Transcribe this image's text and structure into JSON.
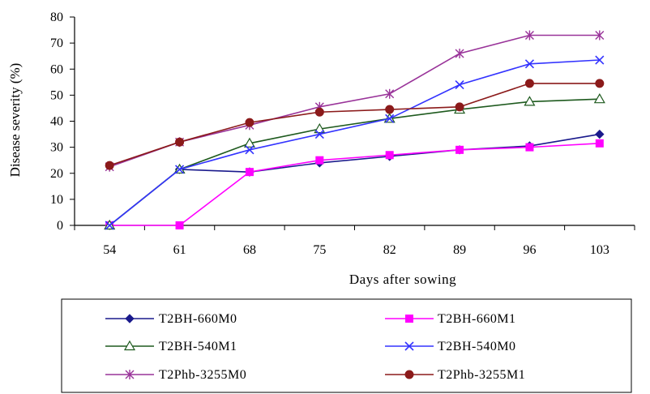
{
  "chart_data": {
    "type": "line",
    "title": "",
    "xlabel": "Days after sowing",
    "ylabel": "Disease severity (%)",
    "categories": [
      "54",
      "61",
      "68",
      "75",
      "82",
      "89",
      "96",
      "103"
    ],
    "ylim": [
      0,
      80
    ],
    "yticks": [
      0,
      10,
      20,
      30,
      40,
      50,
      60,
      70,
      80
    ],
    "grid": false,
    "legend_position": "bottom",
    "series": [
      {
        "name": "T2BH-660M0",
        "color": "#1a1a8c",
        "marker": "diamond",
        "values": [
          0,
          21.5,
          20.5,
          24,
          26.5,
          29,
          30.5,
          35
        ]
      },
      {
        "name": "T2BH-660M1",
        "color": "#ff00ff",
        "marker": "square",
        "values": [
          0,
          0,
          20.5,
          25,
          27,
          29,
          30,
          31.5
        ]
      },
      {
        "name": "T2BH-540M1",
        "color": "#1e5a1e",
        "marker": "triangle",
        "values": [
          0,
          21.5,
          31.5,
          37,
          41,
          44.5,
          47.5,
          48.5
        ]
      },
      {
        "name": "T2BH-540M0",
        "color": "#3333ff",
        "marker": "x",
        "values": [
          0,
          21.5,
          29,
          35,
          41,
          54,
          62,
          63.5
        ]
      },
      {
        "name": "T2Phb-3255M0",
        "color": "#993399",
        "marker": "star",
        "values": [
          22.5,
          32,
          38.5,
          45.5,
          50.5,
          66,
          73,
          73
        ]
      },
      {
        "name": "T2Phb-3255M1",
        "color": "#8b1a1a",
        "marker": "circle",
        "values": [
          23,
          32,
          39.5,
          43.5,
          44.5,
          45.5,
          54.5,
          54.5
        ]
      }
    ]
  }
}
